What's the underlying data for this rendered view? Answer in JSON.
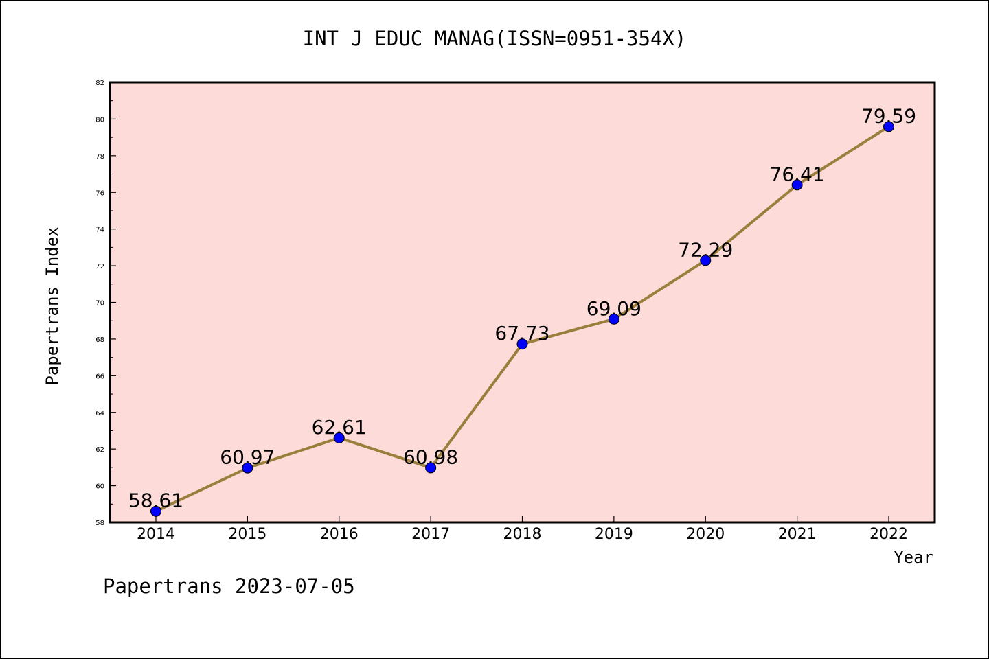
{
  "chart_data": {
    "type": "line",
    "title": "INT J EDUC MANAG(ISSN=0951-354X)",
    "xlabel": "Year",
    "ylabel": "Papertrans Index",
    "x": [
      "2014",
      "2015",
      "2016",
      "2017",
      "2018",
      "2019",
      "2020",
      "2021",
      "2022"
    ],
    "series": [
      {
        "values": [
          58.61,
          60.97,
          62.61,
          60.98,
          67.73,
          69.09,
          72.29,
          76.41,
          79.59
        ],
        "data_labels": [
          "58.61",
          "60.97",
          "62.61",
          "60.98",
          "67.73",
          "69.09",
          "72.29",
          "76.41",
          "79.59"
        ]
      }
    ],
    "ylim": [
      58,
      82
    ],
    "yticks": [
      "58",
      "60",
      "62",
      "64",
      "66",
      "68",
      "70",
      "72",
      "74",
      "76",
      "78",
      "80",
      "82"
    ],
    "grid": false,
    "legend": "none",
    "footer": "Papertrans 2023-07-05",
    "colors": {
      "plot_background": "#fddbd8",
      "line": "#9a7f3c",
      "marker": "#0000ff",
      "axis": "#000000"
    }
  }
}
